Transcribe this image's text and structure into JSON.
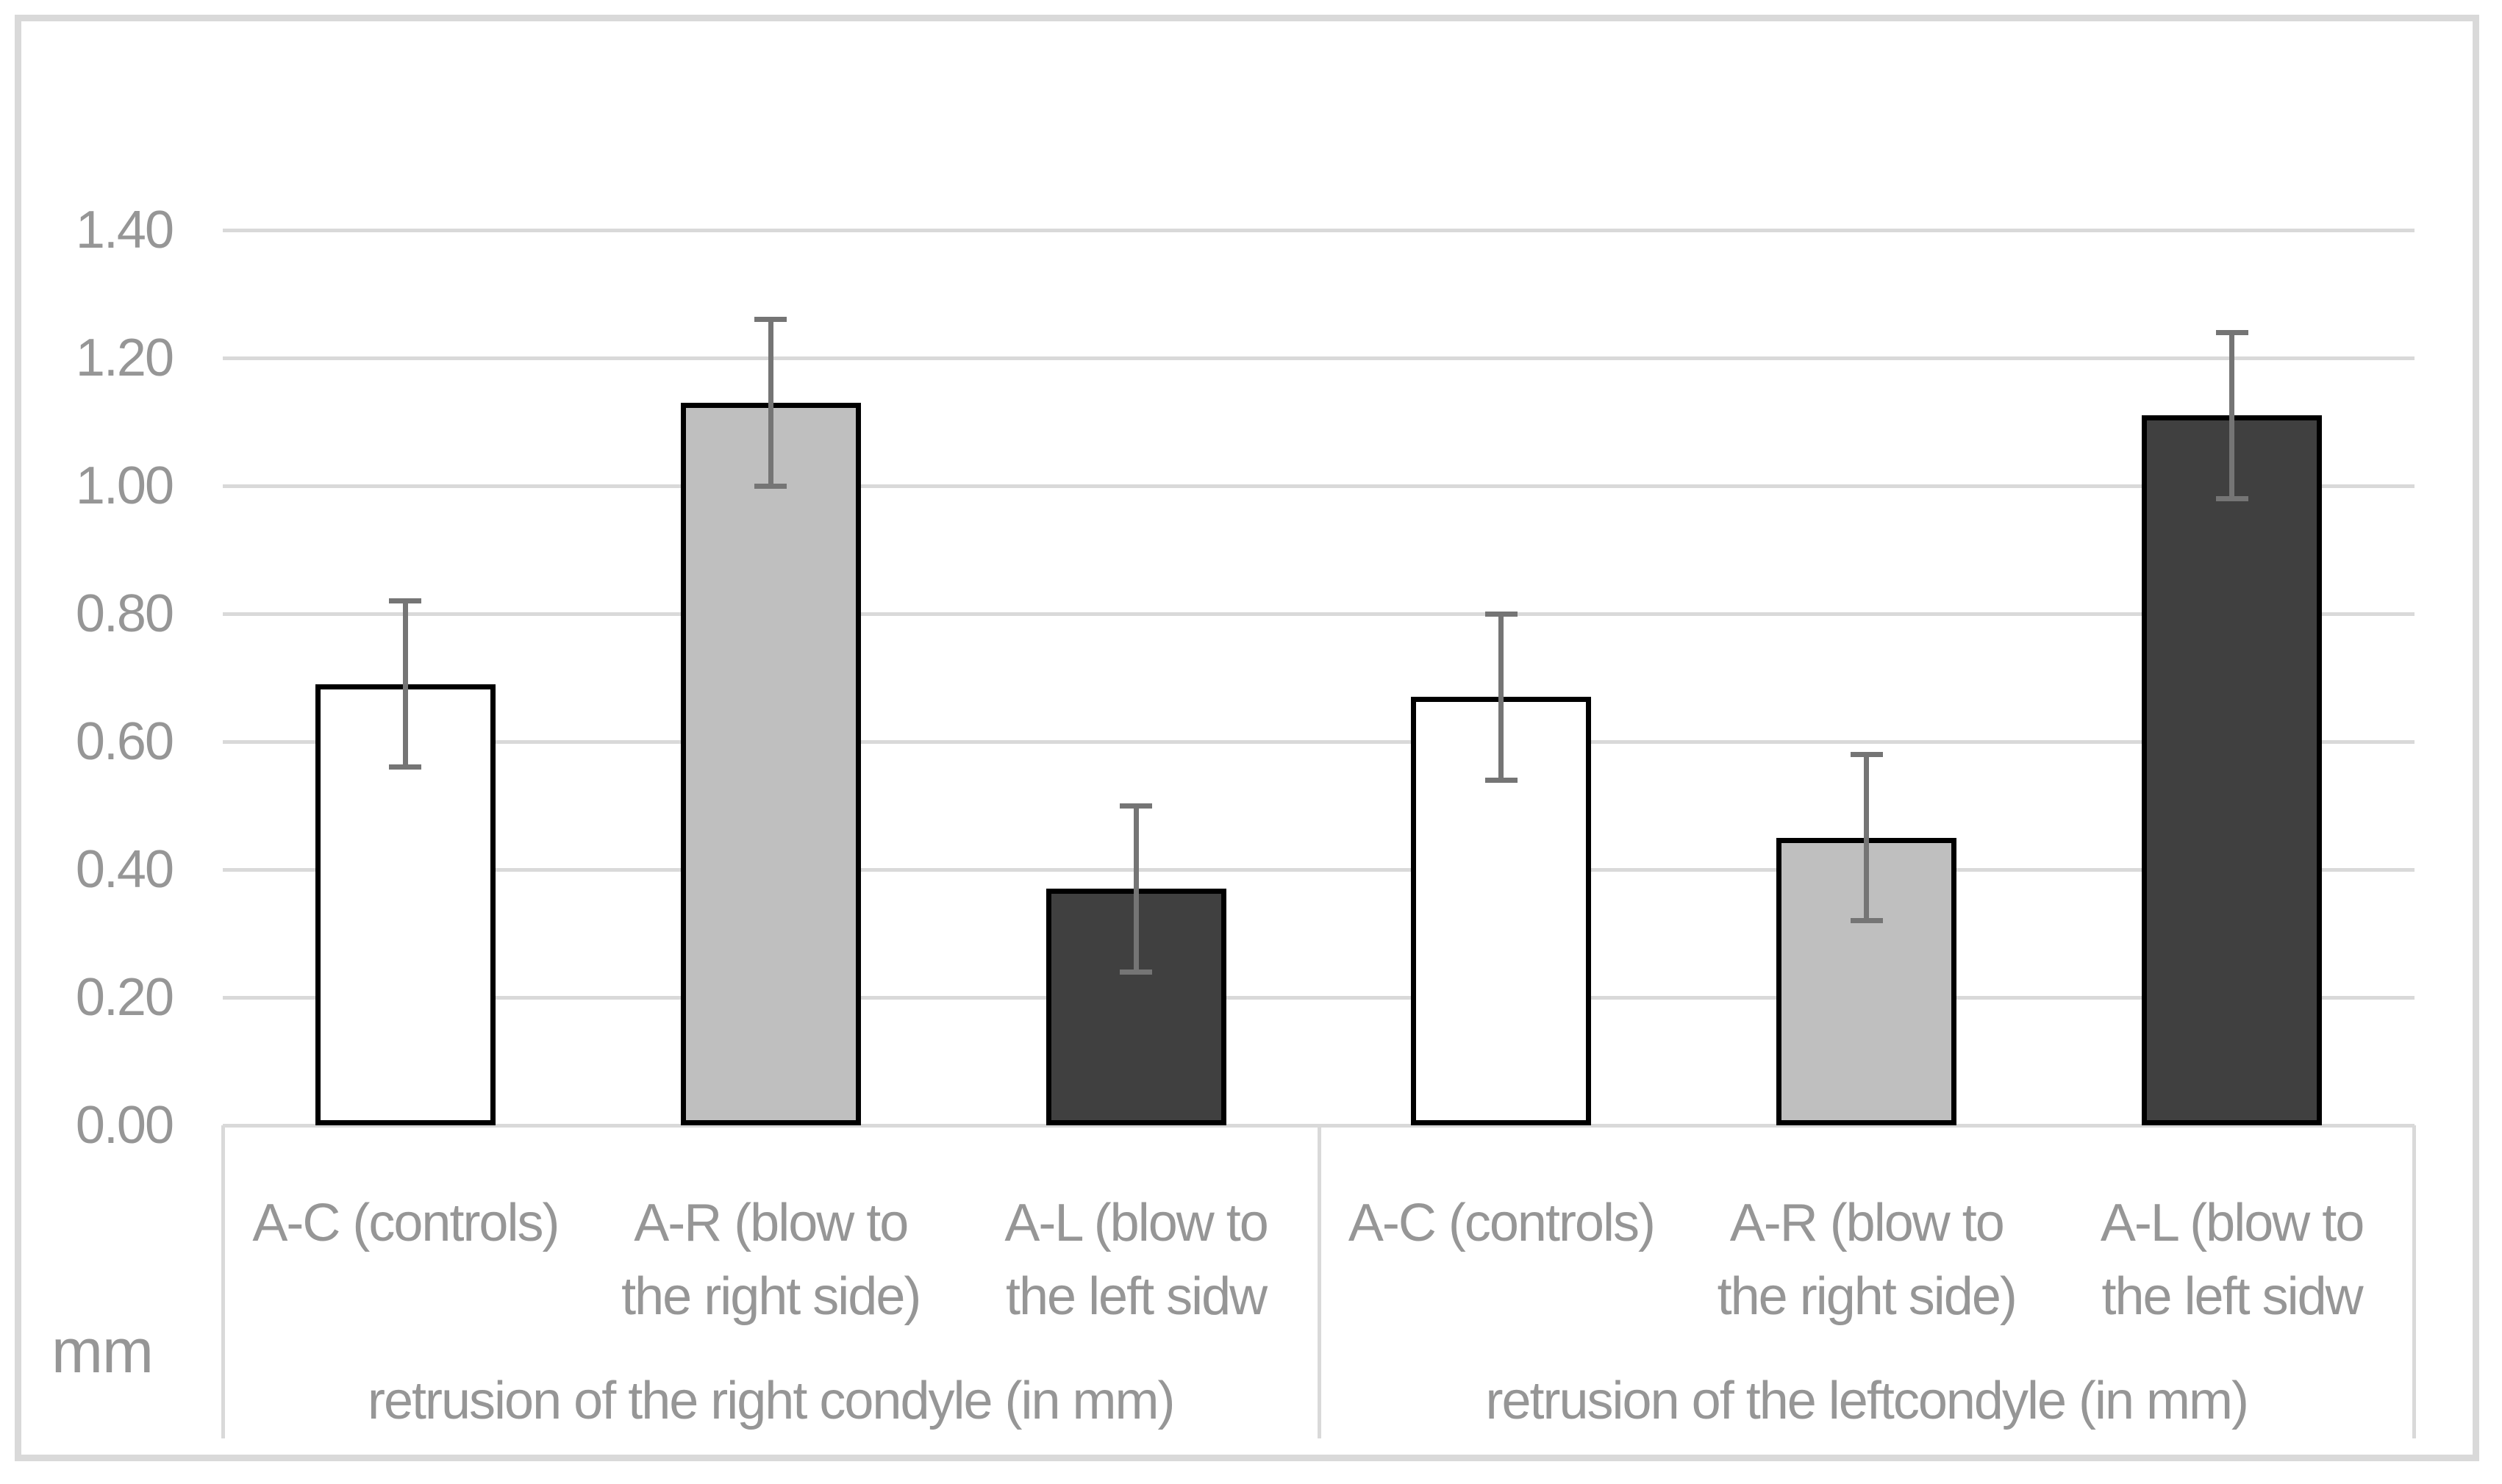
{
  "chart_data": {
    "type": "bar",
    "title": "",
    "unit_label": "mm",
    "grid": true,
    "legend": false,
    "y_axis": {
      "min": 0.0,
      "max": 1.4,
      "step": 0.2,
      "ticks": [
        {
          "value": 0.0,
          "label": "0.00"
        },
        {
          "value": 0.2,
          "label": "0.20"
        },
        {
          "value": 0.4,
          "label": "0.40"
        },
        {
          "value": 0.6,
          "label": "0.60"
        },
        {
          "value": 0.8,
          "label": "0.80"
        },
        {
          "value": 1.0,
          "label": "1.00"
        },
        {
          "value": 1.2,
          "label": "1.20"
        },
        {
          "value": 1.4,
          "label": "1.40"
        }
      ]
    },
    "categories": [
      "A-C (controls)",
      "A-R (blow to the right side)",
      "A-L (blow to the left sidw"
    ],
    "groups": [
      {
        "label": "retrusion of the right condyle (in mm)",
        "bars": [
          {
            "category_lines": [
              "A-C (controls)"
            ],
            "value": 0.69,
            "error": 0.13,
            "fill": "#ffffff"
          },
          {
            "category_lines": [
              "A-R (blow to",
              "the right side)"
            ],
            "value": 1.13,
            "error": 0.13,
            "fill": "#bfbfbf"
          },
          {
            "category_lines": [
              "A-L (blow to",
              "the left sidw"
            ],
            "value": 0.37,
            "error": 0.13,
            "fill": "#404040"
          }
        ]
      },
      {
        "label": "retrusion of the leftcondyle (in mm)",
        "bars": [
          {
            "category_lines": [
              "A-C (controls)"
            ],
            "value": 0.67,
            "error": 0.13,
            "fill": "#ffffff"
          },
          {
            "category_lines": [
              "A-R (blow to",
              "the right side)"
            ],
            "value": 0.45,
            "error": 0.13,
            "fill": "#bfbfbf"
          },
          {
            "category_lines": [
              "A-L (blow to",
              "the left sidw"
            ],
            "value": 1.11,
            "error": 0.13,
            "fill": "#404040"
          }
        ]
      }
    ],
    "colors": {
      "background": "#ffffff",
      "figure_border": "#d9d9d9",
      "gridline": "#d9d9d9",
      "axis_text": "#969696",
      "bar_border": "#000000",
      "error_bar": "#757575"
    }
  }
}
